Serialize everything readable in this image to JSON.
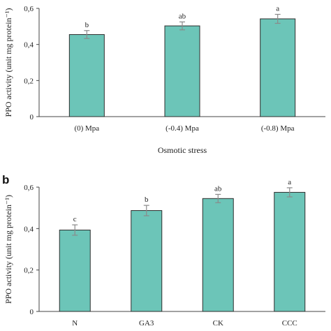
{
  "colors": {
    "bar_fill": "#6cc5b8",
    "bar_stroke": "#2e2e2e",
    "axis": "#444444",
    "error_bar": "#8a8a8a"
  },
  "chart_data": [
    {
      "type": "bar",
      "panel_label": "",
      "categories": [
        "(0) Mpa",
        "(-0.4) Mpa",
        "(-0.8) Mpa"
      ],
      "values": [
        0.455,
        0.503,
        0.542
      ],
      "errors": [
        0.022,
        0.022,
        0.025
      ],
      "significance": [
        "b",
        "ab",
        "a"
      ],
      "xlabel": "Osmotic stress",
      "ylabel": "PPO activity (unit mg protein⁻¹)",
      "ylim": [
        0,
        0.6
      ],
      "yticks": [
        "0",
        "0,2",
        "0,4",
        "0,6"
      ],
      "grid": false
    },
    {
      "type": "bar",
      "panel_label": "b",
      "categories": [
        "N",
        "GA3",
        "CK",
        "CCC"
      ],
      "values": [
        0.393,
        0.487,
        0.545,
        0.575
      ],
      "errors": [
        0.025,
        0.025,
        0.02,
        0.022
      ],
      "significance": [
        "c",
        "b",
        "ab",
        "a"
      ],
      "xlabel": "",
      "ylabel": "PPO activity (unit mg protein⁻¹)",
      "ylim": [
        0,
        0.6
      ],
      "yticks": [
        "0",
        "0,2",
        "0,4",
        "0,6"
      ],
      "grid": false
    }
  ]
}
